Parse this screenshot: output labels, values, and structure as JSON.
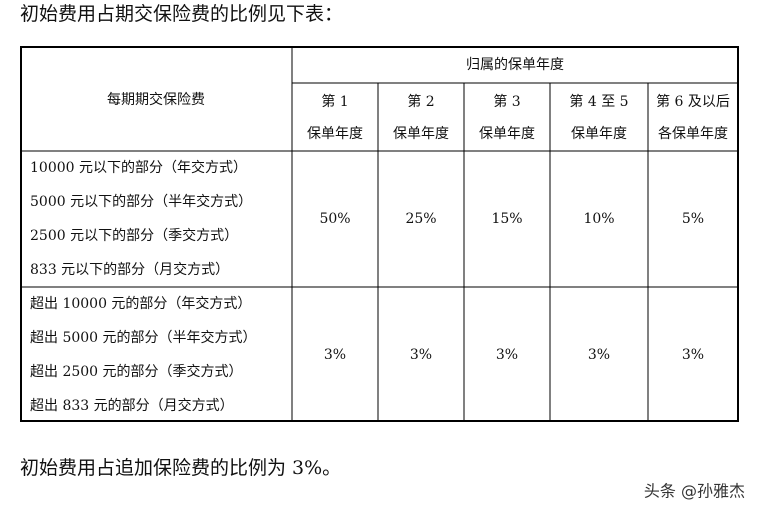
{
  "heading": "初始费用占期交保险费的比例见下表：",
  "table": {
    "row_header": "每期期交保险费",
    "group_header": "归属的保单年度",
    "columns": [
      [
        "第 1",
        "保单年度"
      ],
      [
        "第 2",
        "保单年度"
      ],
      [
        "第 3",
        "保单年度"
      ],
      [
        "第 4 至 5",
        "保单年度"
      ],
      [
        "第 6 及以后",
        "各保单年度"
      ]
    ],
    "rows": [
      {
        "labels": [
          "10000 元以下的部分（年交方式）",
          "5000 元以下的部分（半年交方式）",
          "2500 元以下的部分（季交方式）",
          "833 元以下的部分（月交方式）"
        ],
        "values": [
          "50%",
          "25%",
          "15%",
          "10%",
          "5%"
        ]
      },
      {
        "labels": [
          "超出 10000 元的部分（年交方式）",
          "超出 5000 元的部分（半年交方式）",
          "超出 2500 元的部分（季交方式）",
          "超出 833 元的部分（月交方式）"
        ],
        "values": [
          "3%",
          "3%",
          "3%",
          "3%",
          "3%"
        ]
      }
    ]
  },
  "footer": "初始费用占追加保险费的比例为 3%。",
  "watermark": "头条 @孙雅杰"
}
